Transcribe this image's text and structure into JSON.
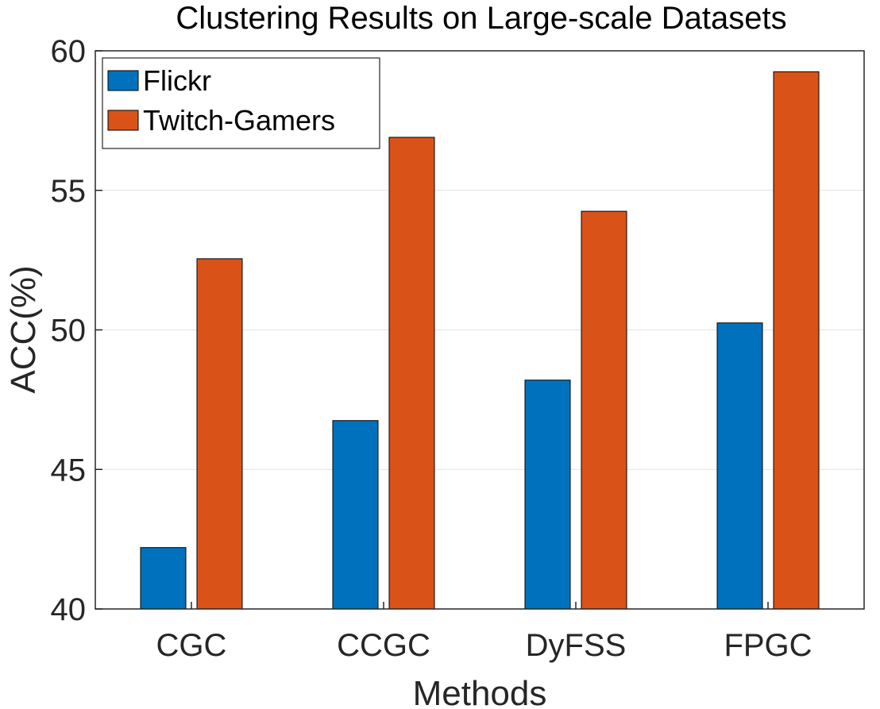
{
  "chart_data": {
    "type": "bar",
    "title": "Clustering Results on Large-scale Datasets",
    "xlabel": "Methods",
    "ylabel": "ACC(%)",
    "categories": [
      "CGC",
      "CCGC",
      "DyFSS",
      "FPGC"
    ],
    "series": [
      {
        "name": "Flickr",
        "color": "#0072BD",
        "values": [
          42.2,
          46.75,
          48.2,
          50.25
        ]
      },
      {
        "name": "Twitch-Gamers",
        "color": "#D95319",
        "values": [
          52.55,
          56.9,
          54.25,
          59.25
        ]
      }
    ],
    "ylim": [
      40,
      60
    ],
    "yticks": [
      40,
      45,
      50,
      55,
      60
    ],
    "grid": true,
    "legend_position": "top-left"
  }
}
